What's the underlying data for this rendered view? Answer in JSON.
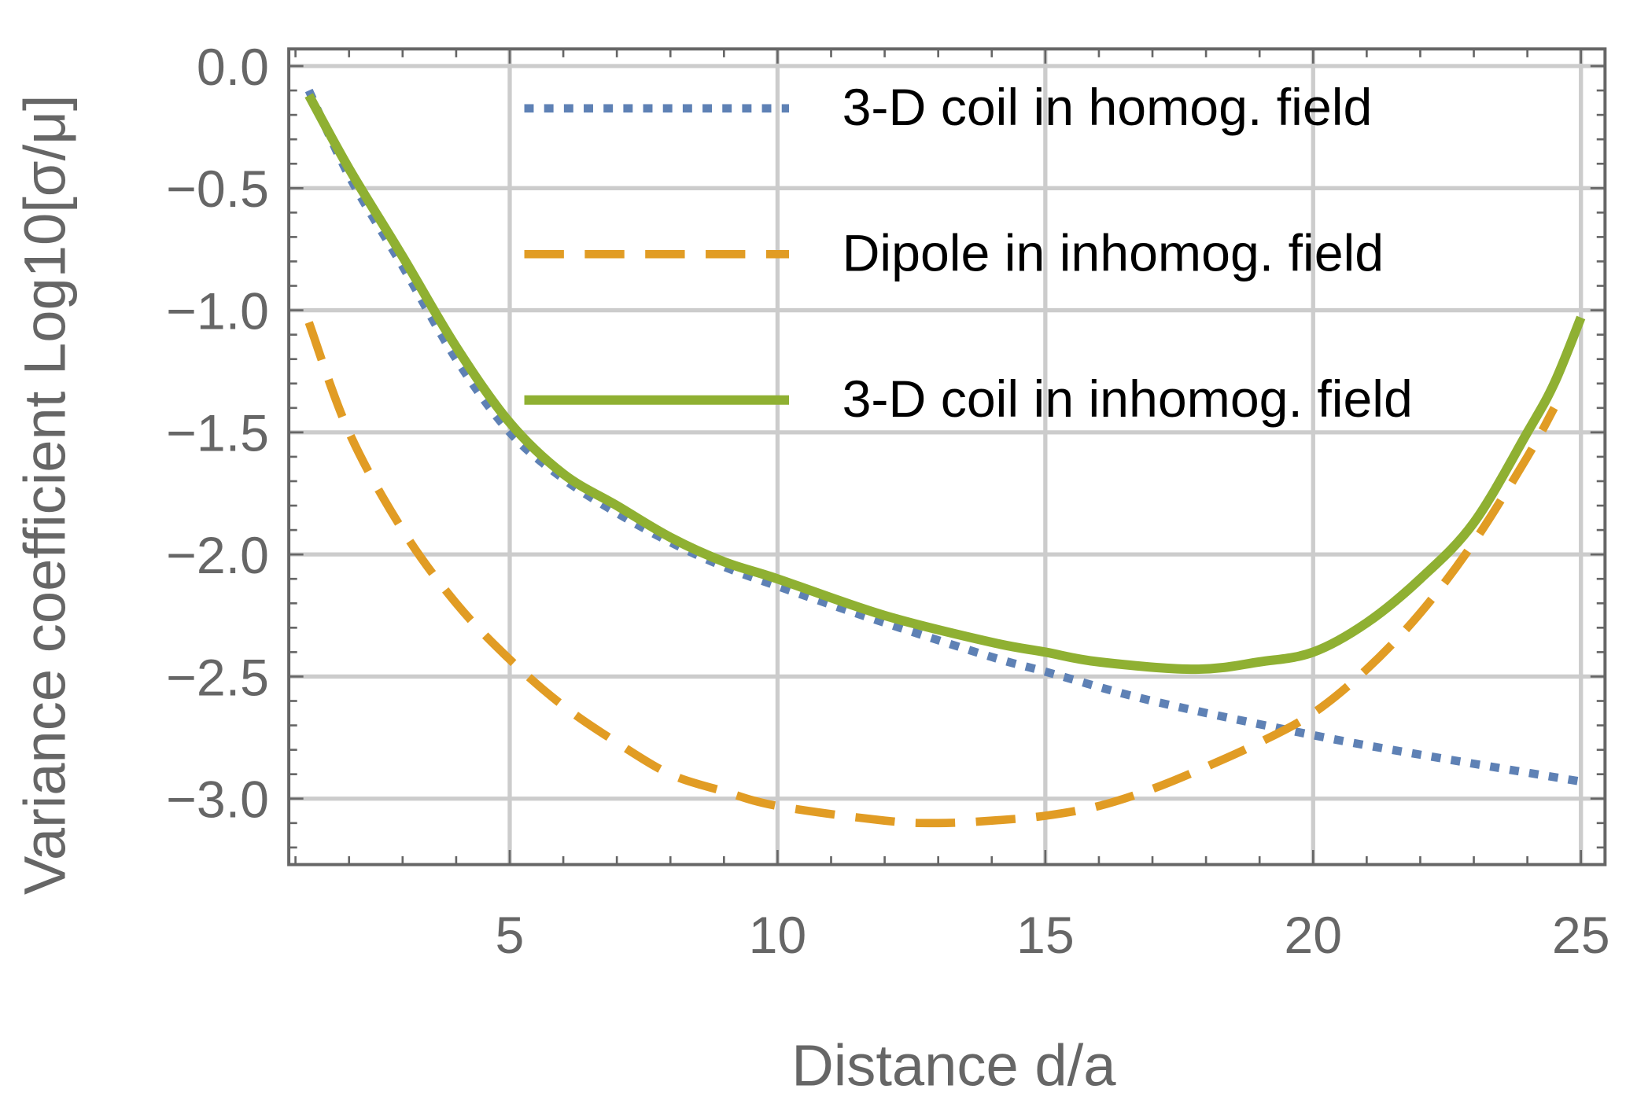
{
  "chart_data": {
    "type": "line",
    "title": "",
    "xlabel": "Distance d/a",
    "ylabel": "Variance coefficient Log10[σ/μ]",
    "xlim": [
      0.875,
      25.45
    ],
    "ylim": [
      -3.27,
      0.07
    ],
    "xticks": [
      5,
      10,
      15,
      20,
      25
    ],
    "xtick_labels": [
      "5",
      "10",
      "15",
      "20",
      "25"
    ],
    "yticks": [
      0,
      -0.5,
      -1,
      -1.5,
      -2,
      -2.5,
      -3
    ],
    "ytick_labels": [
      "0.0",
      "−0.5",
      "−1.0",
      "−1.5",
      "−2.0",
      "−2.5",
      "−3.0"
    ],
    "grid": true,
    "legend_position": "top-right",
    "series": [
      {
        "name": "3-D coil in homog. field",
        "color": "#5e81b5",
        "style": "dotted",
        "x": [
          1.25,
          2,
          3,
          4,
          5,
          6,
          7,
          8,
          9,
          10,
          12,
          14,
          15,
          17,
          20,
          22,
          25
        ],
        "y": [
          -0.1,
          -0.45,
          -0.82,
          -1.2,
          -1.5,
          -1.69,
          -1.83,
          -1.95,
          -2.05,
          -2.13,
          -2.28,
          -2.42,
          -2.48,
          -2.6,
          -2.74,
          -2.82,
          -2.93
        ]
      },
      {
        "name": "Dipole in inhomog. field",
        "color": "#e19c24",
        "style": "dashed",
        "x": [
          1.25,
          2,
          3,
          4,
          5,
          6,
          7,
          8,
          9,
          10,
          12,
          13,
          14,
          15,
          16,
          17,
          18,
          19,
          20,
          21,
          22,
          23,
          24,
          24.5
        ],
        "y": [
          -1.05,
          -1.5,
          -1.9,
          -2.2,
          -2.43,
          -2.62,
          -2.77,
          -2.9,
          -2.97,
          -3.03,
          -3.09,
          -3.1,
          -3.09,
          -3.07,
          -3.03,
          -2.96,
          -2.87,
          -2.77,
          -2.65,
          -2.47,
          -2.24,
          -1.95,
          -1.6,
          -1.4
        ]
      },
      {
        "name": "3-D coil in inhomog. field",
        "color": "#8fb032",
        "style": "solid",
        "x": [
          1.25,
          2,
          3,
          4,
          5,
          6,
          7,
          8,
          9,
          10,
          12,
          14,
          15,
          16,
          17.8,
          19,
          20,
          21,
          22,
          23,
          24,
          24.5,
          25
        ],
        "y": [
          -0.12,
          -0.42,
          -0.78,
          -1.15,
          -1.46,
          -1.67,
          -1.8,
          -1.93,
          -2.03,
          -2.1,
          -2.25,
          -2.36,
          -2.4,
          -2.44,
          -2.47,
          -2.44,
          -2.4,
          -2.28,
          -2.1,
          -1.87,
          -1.5,
          -1.3,
          -1.03
        ]
      }
    ]
  }
}
